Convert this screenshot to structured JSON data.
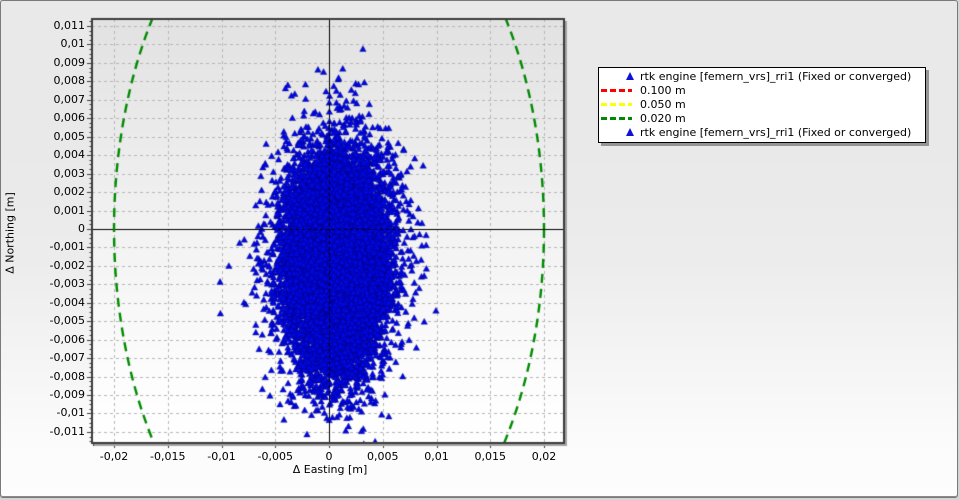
{
  "window": {
    "border_color": "#7a7a7a",
    "background_top": "#e9e9e9",
    "background_bottom": "#ffffff"
  },
  "chart_data": {
    "type": "scatter",
    "xlabel": "Δ Easting [m]",
    "ylabel": "Δ Northing [m]",
    "xlim": [
      -0.02205,
      0.02186
    ],
    "ylim": [
      -0.0116,
      0.01138
    ],
    "x_ticks": {
      "values": [
        -0.02,
        -0.015,
        -0.01,
        -0.005,
        0,
        0.005,
        0.01,
        0.015,
        0.02
      ],
      "labels": [
        "-0,02",
        "-0,015",
        "-0,01",
        "-0,005",
        "0",
        "0,005",
        "0,01",
        "0,015",
        "0,02"
      ]
    },
    "y_ticks": {
      "values": [
        0.011,
        0.01,
        0.009,
        0.008,
        0.007,
        0.006,
        0.005,
        0.004,
        0.003,
        0.002,
        0.001,
        0,
        -0.001,
        -0.002,
        -0.003,
        -0.004,
        -0.005,
        -0.006,
        -0.007,
        -0.008,
        -0.009,
        -0.01,
        -0.011
      ],
      "labels": [
        "0,011",
        "0,01",
        "0,009",
        "0,008",
        "0,007",
        "0,006",
        "0,005",
        "0,004",
        "0,003",
        "0,002",
        "0,001",
        "0",
        "-0,001",
        "-0,002",
        "-0,003",
        "-0,004",
        "-0,005",
        "-0,006",
        "-0,007",
        "-0,008",
        "-0,009",
        "-0,01",
        "-0,011"
      ]
    },
    "x_minor_step": 0.001,
    "y_minor_step": 0.00025,
    "grid": {
      "show": true,
      "color": "#b7b7b7",
      "style": "dashed"
    },
    "zero_crosshair": {
      "color": "#000000",
      "style": "dashed-over-solid"
    },
    "reference_circles": [
      {
        "label": "0.100 m",
        "radius_m": 0.1,
        "color": "#ff0000",
        "style": "dashed"
      },
      {
        "label": "0.050 m",
        "radius_m": 0.05,
        "color": "#ffff00",
        "style": "dashed"
      },
      {
        "label": "0.020 m",
        "radius_m": 0.02,
        "color": "#008a00",
        "style": "dashed"
      }
    ],
    "series": [
      {
        "name": "rtk engine [femern_vrs]_rri1 (Fixed or converged)",
        "marker": "triangle-up",
        "color": "#0008e6",
        "edge_color": "#000070",
        "distribution": {
          "center_m": [
            0.0007,
            -0.0018
          ],
          "sigma_m": [
            0.00235,
            0.0029
          ],
          "n_points": 12000,
          "seed": 7
        },
        "observed_extent_m": {
          "x": [
            -0.009,
            0.01
          ],
          "y": [
            -0.0105,
            0.008
          ]
        },
        "solid_core_extent_m": {
          "x": [
            -0.005,
            0.0065
          ],
          "y": [
            -0.0085,
            0.0048
          ]
        }
      }
    ]
  },
  "legend": {
    "items": [
      {
        "marker": "triangle",
        "color": "#1010d8",
        "label": "rtk engine [femern_vrs]_rri1 (Fixed or converged)"
      },
      {
        "marker": "dashes",
        "color": "#ff0000",
        "label": "0.100 m"
      },
      {
        "marker": "dashes",
        "color": "#ffff00",
        "label": "0.050 m"
      },
      {
        "marker": "dashes",
        "color": "#008a00",
        "label": "0.020 m"
      },
      {
        "marker": "triangle",
        "color": "#1010d8",
        "label": "rtk engine [femern_vrs]_rri1 (Fixed or converged)"
      }
    ]
  }
}
